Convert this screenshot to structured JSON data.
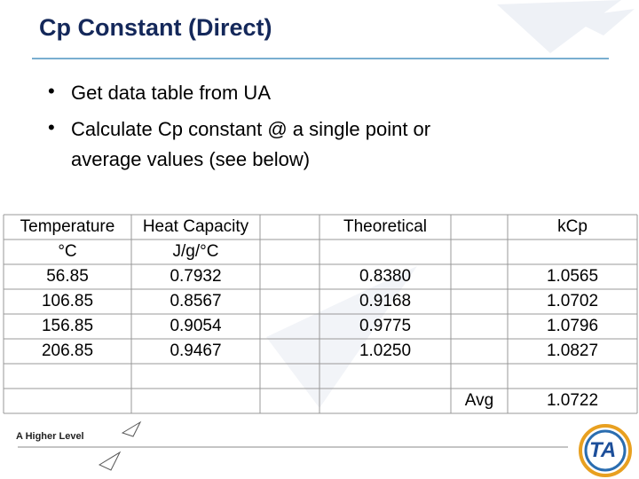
{
  "header": {
    "title": "Cp Constant (Direct)"
  },
  "bullets": [
    "Get data table from UA",
    "Calculate Cp constant @ a single point or",
    "average values (see below)"
  ],
  "table": {
    "header": [
      "Temperature",
      "Heat Capacity",
      "Theoretical",
      "kCp"
    ],
    "units": [
      "°C",
      "J/g/°C"
    ],
    "rows": [
      [
        "56.85",
        "0.7932",
        "0.8380",
        "1.0565"
      ],
      [
        "106.85",
        "0.8567",
        "0.9168",
        "1.0702"
      ],
      [
        "156.85",
        "0.9054",
        "0.9775",
        "1.0796"
      ],
      [
        "206.85",
        "0.9467",
        "1.0250",
        "1.0827"
      ]
    ],
    "avg_label": "Avg",
    "avg_value": "1.0722"
  },
  "footer": {
    "tagline": "A Higher Level",
    "logo": "TA"
  }
}
